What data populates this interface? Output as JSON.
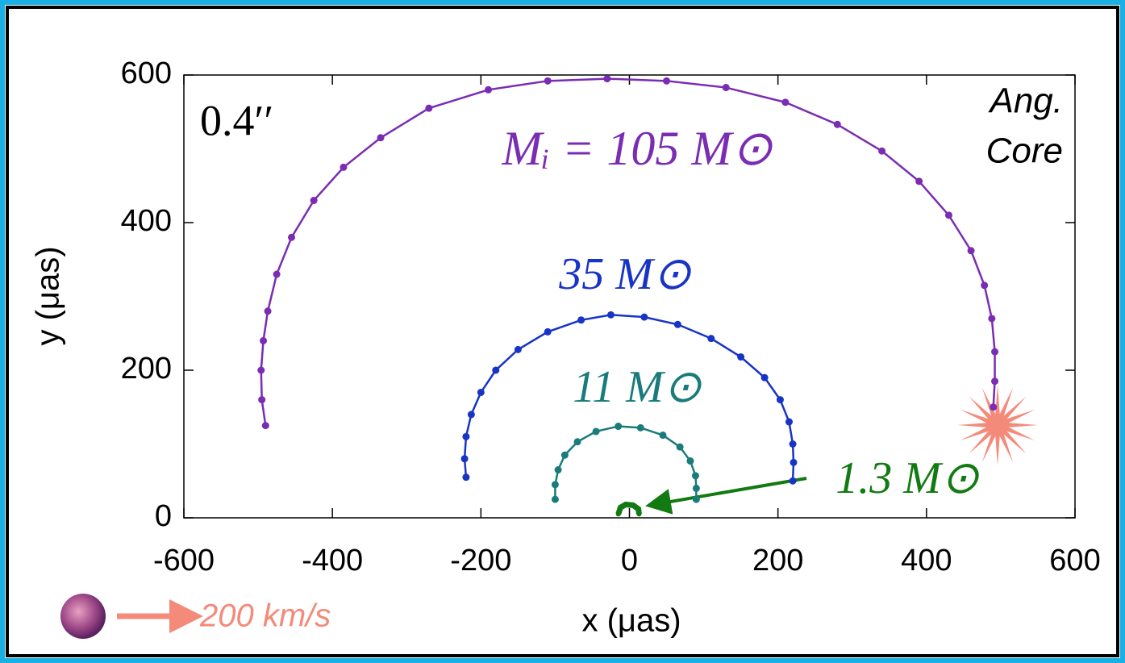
{
  "chart_data": {
    "type": "line",
    "x_label": "x (μas)",
    "y_label": "y (μas)",
    "xlim": [
      -600,
      600
    ],
    "ylim": [
      0,
      600
    ],
    "xticks": [
      -600,
      -400,
      -200,
      0,
      200,
      400,
      600
    ],
    "yticks": [
      0,
      200,
      400,
      600
    ],
    "annotations": [
      "0.4′′",
      "Ang.",
      "Core",
      "200 km/s"
    ],
    "series": [
      {
        "name": "Mᵢ = 105 M⊙",
        "color": "#7a2cb3",
        "x": [
          -490,
          -495,
          -496,
          -493,
          -487,
          -475,
          -455,
          -425,
          -385,
          -335,
          -270,
          -190,
          -110,
          -30,
          50,
          130,
          210,
          280,
          340,
          390,
          430,
          460,
          478,
          488,
          492,
          492,
          490
        ],
        "values": [
          125,
          160,
          200,
          240,
          280,
          330,
          380,
          430,
          475,
          515,
          555,
          580,
          592,
          595,
          592,
          583,
          563,
          533,
          497,
          456,
          410,
          362,
          315,
          270,
          225,
          185,
          150
        ]
      },
      {
        "name": "35 M⊙",
        "color": "#1834c6",
        "x": [
          -220,
          -222,
          -220,
          -213,
          -200,
          -180,
          -150,
          -110,
          -65,
          -25,
          20,
          65,
          110,
          150,
          182,
          203,
          215,
          220,
          221,
          220
        ],
        "values": [
          55,
          80,
          110,
          140,
          170,
          200,
          228,
          252,
          268,
          275,
          272,
          262,
          243,
          218,
          190,
          160,
          130,
          100,
          75,
          50
        ]
      },
      {
        "name": "11 M⊙",
        "color": "#1a7b7b",
        "x": [
          -100,
          -100,
          -96,
          -87,
          -70,
          -45,
          -15,
          15,
          45,
          68,
          82,
          89,
          90,
          90
        ],
        "values": [
          25,
          45,
          65,
          85,
          103,
          117,
          124,
          122,
          112,
          96,
          77,
          57,
          40,
          25
        ]
      },
      {
        "name": "1.3 M⊙",
        "color": "#127a12",
        "x": [
          -15,
          -12,
          -5,
          5,
          12,
          13
        ],
        "values": [
          5,
          14,
          18,
          17,
          12,
          5
        ]
      }
    ]
  }
}
